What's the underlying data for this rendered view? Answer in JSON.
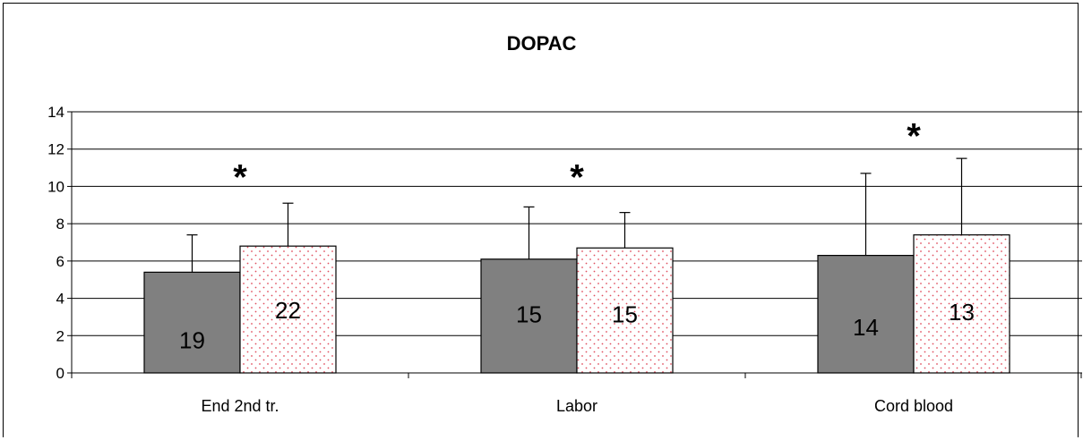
{
  "chart_data": {
    "type": "bar",
    "title": "DOPAC",
    "xlabel": "",
    "ylabel": "",
    "categories": [
      "End 2nd tr.",
      "Labor",
      "Cord blood"
    ],
    "ylim": [
      0,
      14
    ],
    "yticks": [
      0,
      2,
      4,
      6,
      8,
      10,
      12,
      14
    ],
    "grid": true,
    "legend": "none",
    "series": [
      {
        "values": [
          5.4,
          6.1,
          6.3
        ],
        "errors": [
          2.0,
          2.8,
          4.4
        ],
        "bar_labels": [
          "19",
          "15",
          "14"
        ],
        "label_at": [
          1.8,
          3.2,
          2.5
        ],
        "fill": "#808080",
        "pattern": "solid"
      },
      {
        "values": [
          6.8,
          6.7,
          7.4
        ],
        "errors": [
          2.3,
          1.9,
          4.1
        ],
        "bar_labels": [
          "22",
          "15",
          "13"
        ],
        "label_at": [
          3.4,
          3.2,
          3.3
        ],
        "fill": "#ffffff",
        "dot_color": "#e05060",
        "pattern": "dotted"
      }
    ],
    "annotations": [
      {
        "text": "*",
        "category": 0,
        "y": 11.0
      },
      {
        "text": "*",
        "category": 1,
        "y": 11.0
      },
      {
        "text": "*",
        "category": 2,
        "y": 13.2
      }
    ]
  }
}
